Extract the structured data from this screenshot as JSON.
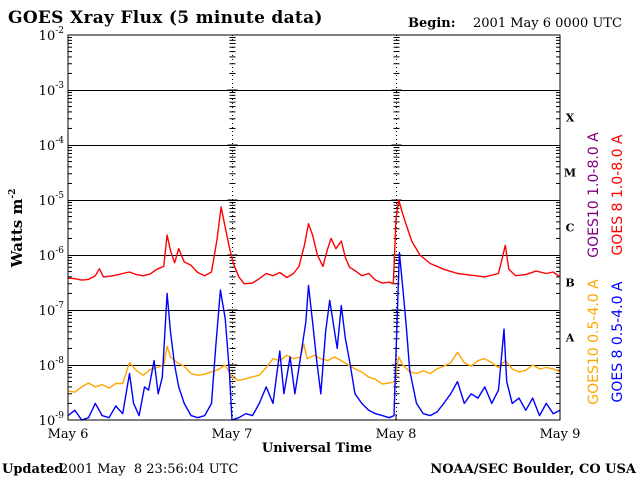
{
  "header": {
    "title": "GOES Xray Flux (5 minute data)",
    "begin_label": "Begin:",
    "begin_value": "2001 May 6 0000 UTC"
  },
  "footer": {
    "updated_label": "Updated",
    "updated_value": "2001 May  8 23:56:04 UTC",
    "source": "NOAA/SEC Boulder, CO USA"
  },
  "chart_data": {
    "type": "line",
    "title": "GOES Xray Flux (5 minute data)",
    "xlabel": "Universal Time",
    "ylabel": "Watts m",
    "ylabel_sup": "-2",
    "yscale": "log",
    "ylim": [
      1e-09,
      0.01
    ],
    "xlim": [
      0,
      72
    ],
    "x_unit": "hours since 2001 May 6 0000 UTC",
    "x_ticks": [
      {
        "x": 0,
        "label": "May 6"
      },
      {
        "x": 24,
        "label": "May 7"
      },
      {
        "x": 48,
        "label": "May 8"
      },
      {
        "x": 72,
        "label": "May 9"
      }
    ],
    "y_ticks": [
      {
        "exp": -9,
        "base": "10",
        "sup": "-9"
      },
      {
        "exp": -8,
        "base": "10",
        "sup": "-8"
      },
      {
        "exp": -7,
        "base": "10",
        "sup": "-7"
      },
      {
        "exp": -6,
        "base": "10",
        "sup": "-6"
      },
      {
        "exp": -5,
        "base": "10",
        "sup": "-5"
      },
      {
        "exp": -4,
        "base": "10",
        "sup": "-4"
      },
      {
        "exp": -3,
        "base": "10",
        "sup": "-3"
      },
      {
        "exp": -2,
        "base": "10",
        "sup": "-2"
      }
    ],
    "flare_classes": [
      {
        "label": "A",
        "exp": -7.5
      },
      {
        "label": "B",
        "exp": -6.5
      },
      {
        "label": "C",
        "exp": -5.5
      },
      {
        "label": "M",
        "exp": -4.5
      },
      {
        "label": "X",
        "exp": -3.5
      }
    ],
    "grid": true,
    "legend_position": "right",
    "series": [
      {
        "name": "GOES10 1.0-8.0 A",
        "color": "#800080",
        "points": []
      },
      {
        "name": "GOES 8 1.0-8.0 A",
        "color": "#ff0000",
        "points": [
          [
            0,
            3.8e-07
          ],
          [
            1,
            3.7e-07
          ],
          [
            2,
            3.5e-07
          ],
          [
            3,
            3.6e-07
          ],
          [
            4,
            4.2e-07
          ],
          [
            4.6,
            5.6e-07
          ],
          [
            5.2,
            4e-07
          ],
          [
            6,
            4.1e-07
          ],
          [
            7,
            4.3e-07
          ],
          [
            8,
            4.6e-07
          ],
          [
            9,
            4.9e-07
          ],
          [
            10,
            4.4e-07
          ],
          [
            11,
            4.2e-07
          ],
          [
            12,
            4.5e-07
          ],
          [
            13,
            5.5e-07
          ],
          [
            14,
            6.2e-07
          ],
          [
            14.5,
            2.3e-06
          ],
          [
            15,
            1.2e-06
          ],
          [
            15.6,
            7.2e-07
          ],
          [
            16.2,
            1.3e-06
          ],
          [
            17,
            7.5e-07
          ],
          [
            18,
            6.5e-07
          ],
          [
            19,
            4.8e-07
          ],
          [
            20,
            4.2e-07
          ],
          [
            21,
            4.9e-07
          ],
          [
            21.8,
            1.9e-06
          ],
          [
            22.4,
            7.5e-06
          ],
          [
            23,
            3.2e-06
          ],
          [
            23.6,
            1.4e-06
          ],
          [
            24.2,
            7e-07
          ],
          [
            25,
            4e-07
          ],
          [
            25.8,
            3e-07
          ],
          [
            27,
            3.1e-07
          ],
          [
            28,
            3.7e-07
          ],
          [
            29,
            4.6e-07
          ],
          [
            30,
            4.2e-07
          ],
          [
            31,
            4.8e-07
          ],
          [
            32,
            3.9e-07
          ],
          [
            33,
            4.6e-07
          ],
          [
            33.8,
            6.2e-07
          ],
          [
            34.6,
            1.5e-06
          ],
          [
            35.2,
            3.7e-06
          ],
          [
            35.8,
            2.3e-06
          ],
          [
            36.5,
            1e-06
          ],
          [
            37.3,
            6.2e-07
          ],
          [
            38,
            1.3e-06
          ],
          [
            38.5,
            2e-06
          ],
          [
            39.2,
            1.3e-06
          ],
          [
            40,
            1.8e-06
          ],
          [
            40.6,
            9e-07
          ],
          [
            41.2,
            6e-07
          ],
          [
            42,
            5.2e-07
          ],
          [
            43,
            4.2e-07
          ],
          [
            44,
            4.6e-07
          ],
          [
            45,
            3.5e-07
          ],
          [
            46,
            3.1e-07
          ],
          [
            47,
            3.2e-07
          ],
          [
            47.6,
            3e-07
          ],
          [
            48,
            4.5e-06
          ],
          [
            48.4,
            1e-05
          ],
          [
            48.9,
            6e-06
          ],
          [
            49.5,
            3.5e-06
          ],
          [
            50.3,
            1.8e-06
          ],
          [
            51.5,
            1e-06
          ],
          [
            53,
            7e-07
          ],
          [
            55,
            5.5e-07
          ],
          [
            57,
            4.6e-07
          ],
          [
            59,
            4.3e-07
          ],
          [
            61,
            4e-07
          ],
          [
            63,
            4.6e-07
          ],
          [
            64,
            1.5e-06
          ],
          [
            64.5,
            5.5e-07
          ],
          [
            65.5,
            4.2e-07
          ],
          [
            67,
            4.4e-07
          ],
          [
            68.5,
            5.1e-07
          ],
          [
            70,
            4.6e-07
          ],
          [
            71,
            4.9e-07
          ],
          [
            72,
            4e-07
          ]
        ]
      },
      {
        "name": "GOES10 0.5-4.0 A",
        "color": "#ffa500",
        "points": [
          [
            0,
            3.4e-09
          ],
          [
            1,
            3.2e-09
          ],
          [
            2,
            4e-09
          ],
          [
            3,
            4.7e-09
          ],
          [
            4,
            4e-09
          ],
          [
            5,
            4.4e-09
          ],
          [
            6,
            3.8e-09
          ],
          [
            7,
            4.6e-09
          ],
          [
            8,
            4.6e-09
          ],
          [
            9,
            1.1e-08
          ],
          [
            10,
            8e-09
          ],
          [
            11,
            6.5e-09
          ],
          [
            12,
            8.2e-09
          ],
          [
            13,
            9e-09
          ],
          [
            14,
            1e-08
          ],
          [
            14.5,
            2.2e-08
          ],
          [
            15,
            1.4e-08
          ],
          [
            16,
            1.1e-08
          ],
          [
            17,
            9.5e-09
          ],
          [
            18,
            7e-09
          ],
          [
            19,
            6.5e-09
          ],
          [
            20,
            6.8e-09
          ],
          [
            21,
            7.5e-09
          ],
          [
            22,
            8.3e-09
          ],
          [
            23,
            1e-08
          ],
          [
            24,
            6e-09
          ],
          [
            25,
            5.2e-09
          ],
          [
            26,
            5.6e-09
          ],
          [
            27,
            6.1e-09
          ],
          [
            28,
            6.5e-09
          ],
          [
            29,
            9e-09
          ],
          [
            30,
            1.3e-08
          ],
          [
            31,
            1.2e-08
          ],
          [
            32,
            1.5e-08
          ],
          [
            33,
            1.3e-08
          ],
          [
            34,
            1.4e-08
          ],
          [
            34.5,
            2.4e-08
          ],
          [
            35,
            1.3e-08
          ],
          [
            36,
            1.5e-08
          ],
          [
            37,
            1.3e-08
          ],
          [
            38,
            1.2e-08
          ],
          [
            39,
            1.4e-08
          ],
          [
            40,
            1.2e-08
          ],
          [
            41,
            1e-08
          ],
          [
            42,
            8.5e-09
          ],
          [
            43,
            7.5e-09
          ],
          [
            44,
            6e-09
          ],
          [
            45,
            5.5e-09
          ],
          [
            46,
            4.5e-09
          ],
          [
            47,
            4.7e-09
          ],
          [
            47.8,
            5e-09
          ],
          [
            48.4,
            1.4e-08
          ],
          [
            49,
            1e-08
          ],
          [
            50,
            7.5e-09
          ],
          [
            51,
            7e-09
          ],
          [
            52,
            7.8e-09
          ],
          [
            53,
            7e-09
          ],
          [
            54,
            8.5e-09
          ],
          [
            55,
            9.5e-09
          ],
          [
            56,
            1.1e-08
          ],
          [
            57,
            1.7e-08
          ],
          [
            58,
            1.1e-08
          ],
          [
            59,
            9.5e-09
          ],
          [
            60,
            1.2e-08
          ],
          [
            61,
            1.3e-08
          ],
          [
            62,
            1.1e-08
          ],
          [
            63,
            9e-09
          ],
          [
            64,
            1.2e-08
          ],
          [
            65,
            8.5e-09
          ],
          [
            66,
            7.5e-09
          ],
          [
            67,
            8e-09
          ],
          [
            68,
            1e-08
          ],
          [
            69,
            8.5e-09
          ],
          [
            70,
            9e-09
          ],
          [
            71,
            8.5e-09
          ],
          [
            72,
            7.5e-09
          ]
        ]
      },
      {
        "name": "GOES 8 0.5-4.0 A",
        "color": "#0000ff",
        "points": [
          [
            0,
            1.2e-09
          ],
          [
            1,
            1.5e-09
          ],
          [
            2,
            1e-09
          ],
          [
            3,
            1.1e-09
          ],
          [
            4,
            2e-09
          ],
          [
            5,
            1.2e-09
          ],
          [
            6,
            1.1e-09
          ],
          [
            7,
            1.8e-09
          ],
          [
            8,
            1.3e-09
          ],
          [
            9,
            7e-09
          ],
          [
            9.6,
            2e-09
          ],
          [
            10.4,
            1.2e-09
          ],
          [
            11.2,
            4e-09
          ],
          [
            11.8,
            3.5e-09
          ],
          [
            12.6,
            1.2e-08
          ],
          [
            13.2,
            3e-09
          ],
          [
            13.8,
            6e-09
          ],
          [
            14.5,
            2e-07
          ],
          [
            15,
            4e-08
          ],
          [
            15.6,
            1e-08
          ],
          [
            16.2,
            4e-09
          ],
          [
            17,
            2e-09
          ],
          [
            18,
            1.2e-09
          ],
          [
            19,
            1.1e-09
          ],
          [
            20,
            1.2e-09
          ],
          [
            21,
            2e-09
          ],
          [
            21.6,
            2e-08
          ],
          [
            22.3,
            2.3e-07
          ],
          [
            23,
            7e-08
          ],
          [
            23.6,
            8e-09
          ],
          [
            24,
            1e-09
          ],
          [
            25,
            1.1e-09
          ],
          [
            26,
            1.3e-09
          ],
          [
            27,
            1.2e-09
          ],
          [
            28,
            2e-09
          ],
          [
            29,
            4e-09
          ],
          [
            30,
            2e-09
          ],
          [
            31,
            1.8e-08
          ],
          [
            31.6,
            3e-09
          ],
          [
            32.5,
            1.4e-08
          ],
          [
            33.2,
            3e-09
          ],
          [
            34,
            1.3e-08
          ],
          [
            34.8,
            6e-08
          ],
          [
            35.2,
            2.8e-07
          ],
          [
            35.8,
            6e-08
          ],
          [
            36.4,
            1.2e-08
          ],
          [
            37,
            3e-09
          ],
          [
            37.7,
            4e-08
          ],
          [
            38.3,
            1.5e-07
          ],
          [
            38.8,
            6e-08
          ],
          [
            39.4,
            2e-08
          ],
          [
            40,
            1.2e-07
          ],
          [
            40.6,
            3e-08
          ],
          [
            41.2,
            1.2e-08
          ],
          [
            42,
            3e-09
          ],
          [
            43,
            2e-09
          ],
          [
            44,
            1.5e-09
          ],
          [
            45,
            1.3e-09
          ],
          [
            46,
            1.2e-09
          ],
          [
            47,
            1.1e-09
          ],
          [
            47.7,
            1.2e-09
          ],
          [
            48.1,
            4e-08
          ],
          [
            48.5,
            1.1e-06
          ],
          [
            49,
            2.5e-07
          ],
          [
            49.5,
            5e-08
          ],
          [
            50,
            8e-09
          ],
          [
            51,
            2e-09
          ],
          [
            52,
            1.3e-09
          ],
          [
            53,
            1.2e-09
          ],
          [
            54,
            1.4e-09
          ],
          [
            55,
            2e-09
          ],
          [
            56,
            3e-09
          ],
          [
            57,
            5e-09
          ],
          [
            58,
            2e-09
          ],
          [
            59,
            3e-09
          ],
          [
            60,
            2.5e-09
          ],
          [
            61,
            4e-09
          ],
          [
            62,
            2e-09
          ],
          [
            63,
            3.5e-09
          ],
          [
            63.8,
            4.5e-08
          ],
          [
            64.2,
            5e-09
          ],
          [
            65,
            2e-09
          ],
          [
            66,
            2.5e-09
          ],
          [
            67,
            1.5e-09
          ],
          [
            68,
            2.5e-09
          ],
          [
            69,
            1.2e-09
          ],
          [
            70,
            2e-09
          ],
          [
            71,
            1.3e-09
          ],
          [
            72,
            1.5e-09
          ]
        ]
      }
    ]
  }
}
